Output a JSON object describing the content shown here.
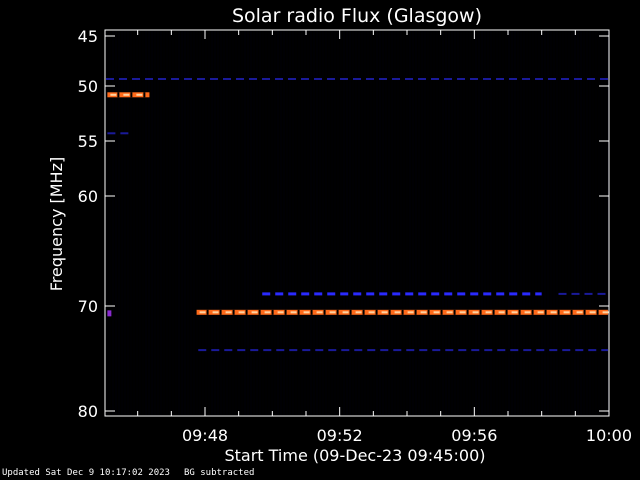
{
  "chart_data": {
    "type": "heatmap",
    "title": "Solar radio Flux (Glasgow)",
    "xlabel": "Start Time (09-Dec-23 09:45:00)",
    "ylabel": "Frequency [MHz]",
    "x_start_minutes": 0,
    "x_end_minutes": 15,
    "x_ticks": [
      {
        "label": "09:48",
        "minute": 3
      },
      {
        "label": "09:52",
        "minute": 7
      },
      {
        "label": "09:56",
        "minute": 11
      },
      {
        "label": "10:00",
        "minute": 15
      }
    ],
    "y_range": [
      45,
      80
    ],
    "y_ticks": [
      {
        "label": "45",
        "mhz": 45
      },
      {
        "label": "50",
        "mhz": 50
      },
      {
        "label": "55",
        "mhz": 55
      },
      {
        "label": "60",
        "mhz": 60
      },
      {
        "label": "70",
        "mhz": 70
      },
      {
        "label": "80",
        "mhz": 80
      }
    ],
    "bands": [
      {
        "mhz": 49.3,
        "from_minute": 0,
        "to_minute": 15,
        "intensity": "low"
      },
      {
        "mhz": 50.8,
        "from_minute": 0.1,
        "to_minute": 1.35,
        "intensity": "high"
      },
      {
        "mhz": 54.3,
        "from_minute": 0.1,
        "to_minute": 0.8,
        "intensity": "low"
      },
      {
        "mhz": 68.9,
        "from_minute": 4.7,
        "to_minute": 13.0,
        "intensity": "medium"
      },
      {
        "mhz": 68.9,
        "from_minute": 13.5,
        "to_minute": 15,
        "intensity": "low"
      },
      {
        "mhz": 70.6,
        "from_minute": 2.75,
        "to_minute": 15,
        "intensity": "high"
      },
      {
        "mhz": 70.7,
        "from_minute": 0.1,
        "to_minute": 0.2,
        "intensity": "spot"
      },
      {
        "mhz": 74.2,
        "from_minute": 2.8,
        "to_minute": 15,
        "intensity": "low"
      }
    ],
    "grid": false,
    "colors": {
      "background": "#000000",
      "low": "#1a1a9a",
      "medium": "#2a2aff",
      "high": "#ff6a1a",
      "high_core": "#ffd2a0",
      "spot": "#8a2ad0"
    }
  },
  "footer": {
    "updated": "Updated Sat Dec  9 10:17:02 2023",
    "note": "BG subtracted"
  }
}
